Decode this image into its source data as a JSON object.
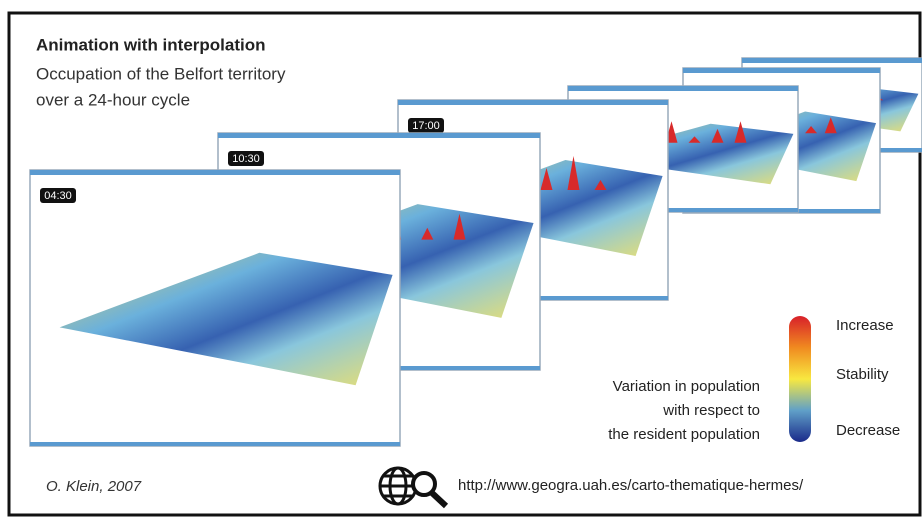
{
  "header": {
    "title": "Animation with interpolation",
    "subtitle_lines": [
      "Occupation of the Belfort territory",
      "over a 24-hour cycle"
    ]
  },
  "frames": [
    {
      "time": "04:30"
    },
    {
      "time": "10:30"
    },
    {
      "time": "17:00"
    }
  ],
  "legend": {
    "high": "Increase",
    "mid": "Stability",
    "low": "Decrease",
    "caption_lines": [
      "Variation in population",
      "with respect to",
      "the resident population"
    ]
  },
  "footer": {
    "author": "O. Klein, 2007",
    "url": "http://www.geogra.uah.es/carto-thematique-hermes/"
  }
}
